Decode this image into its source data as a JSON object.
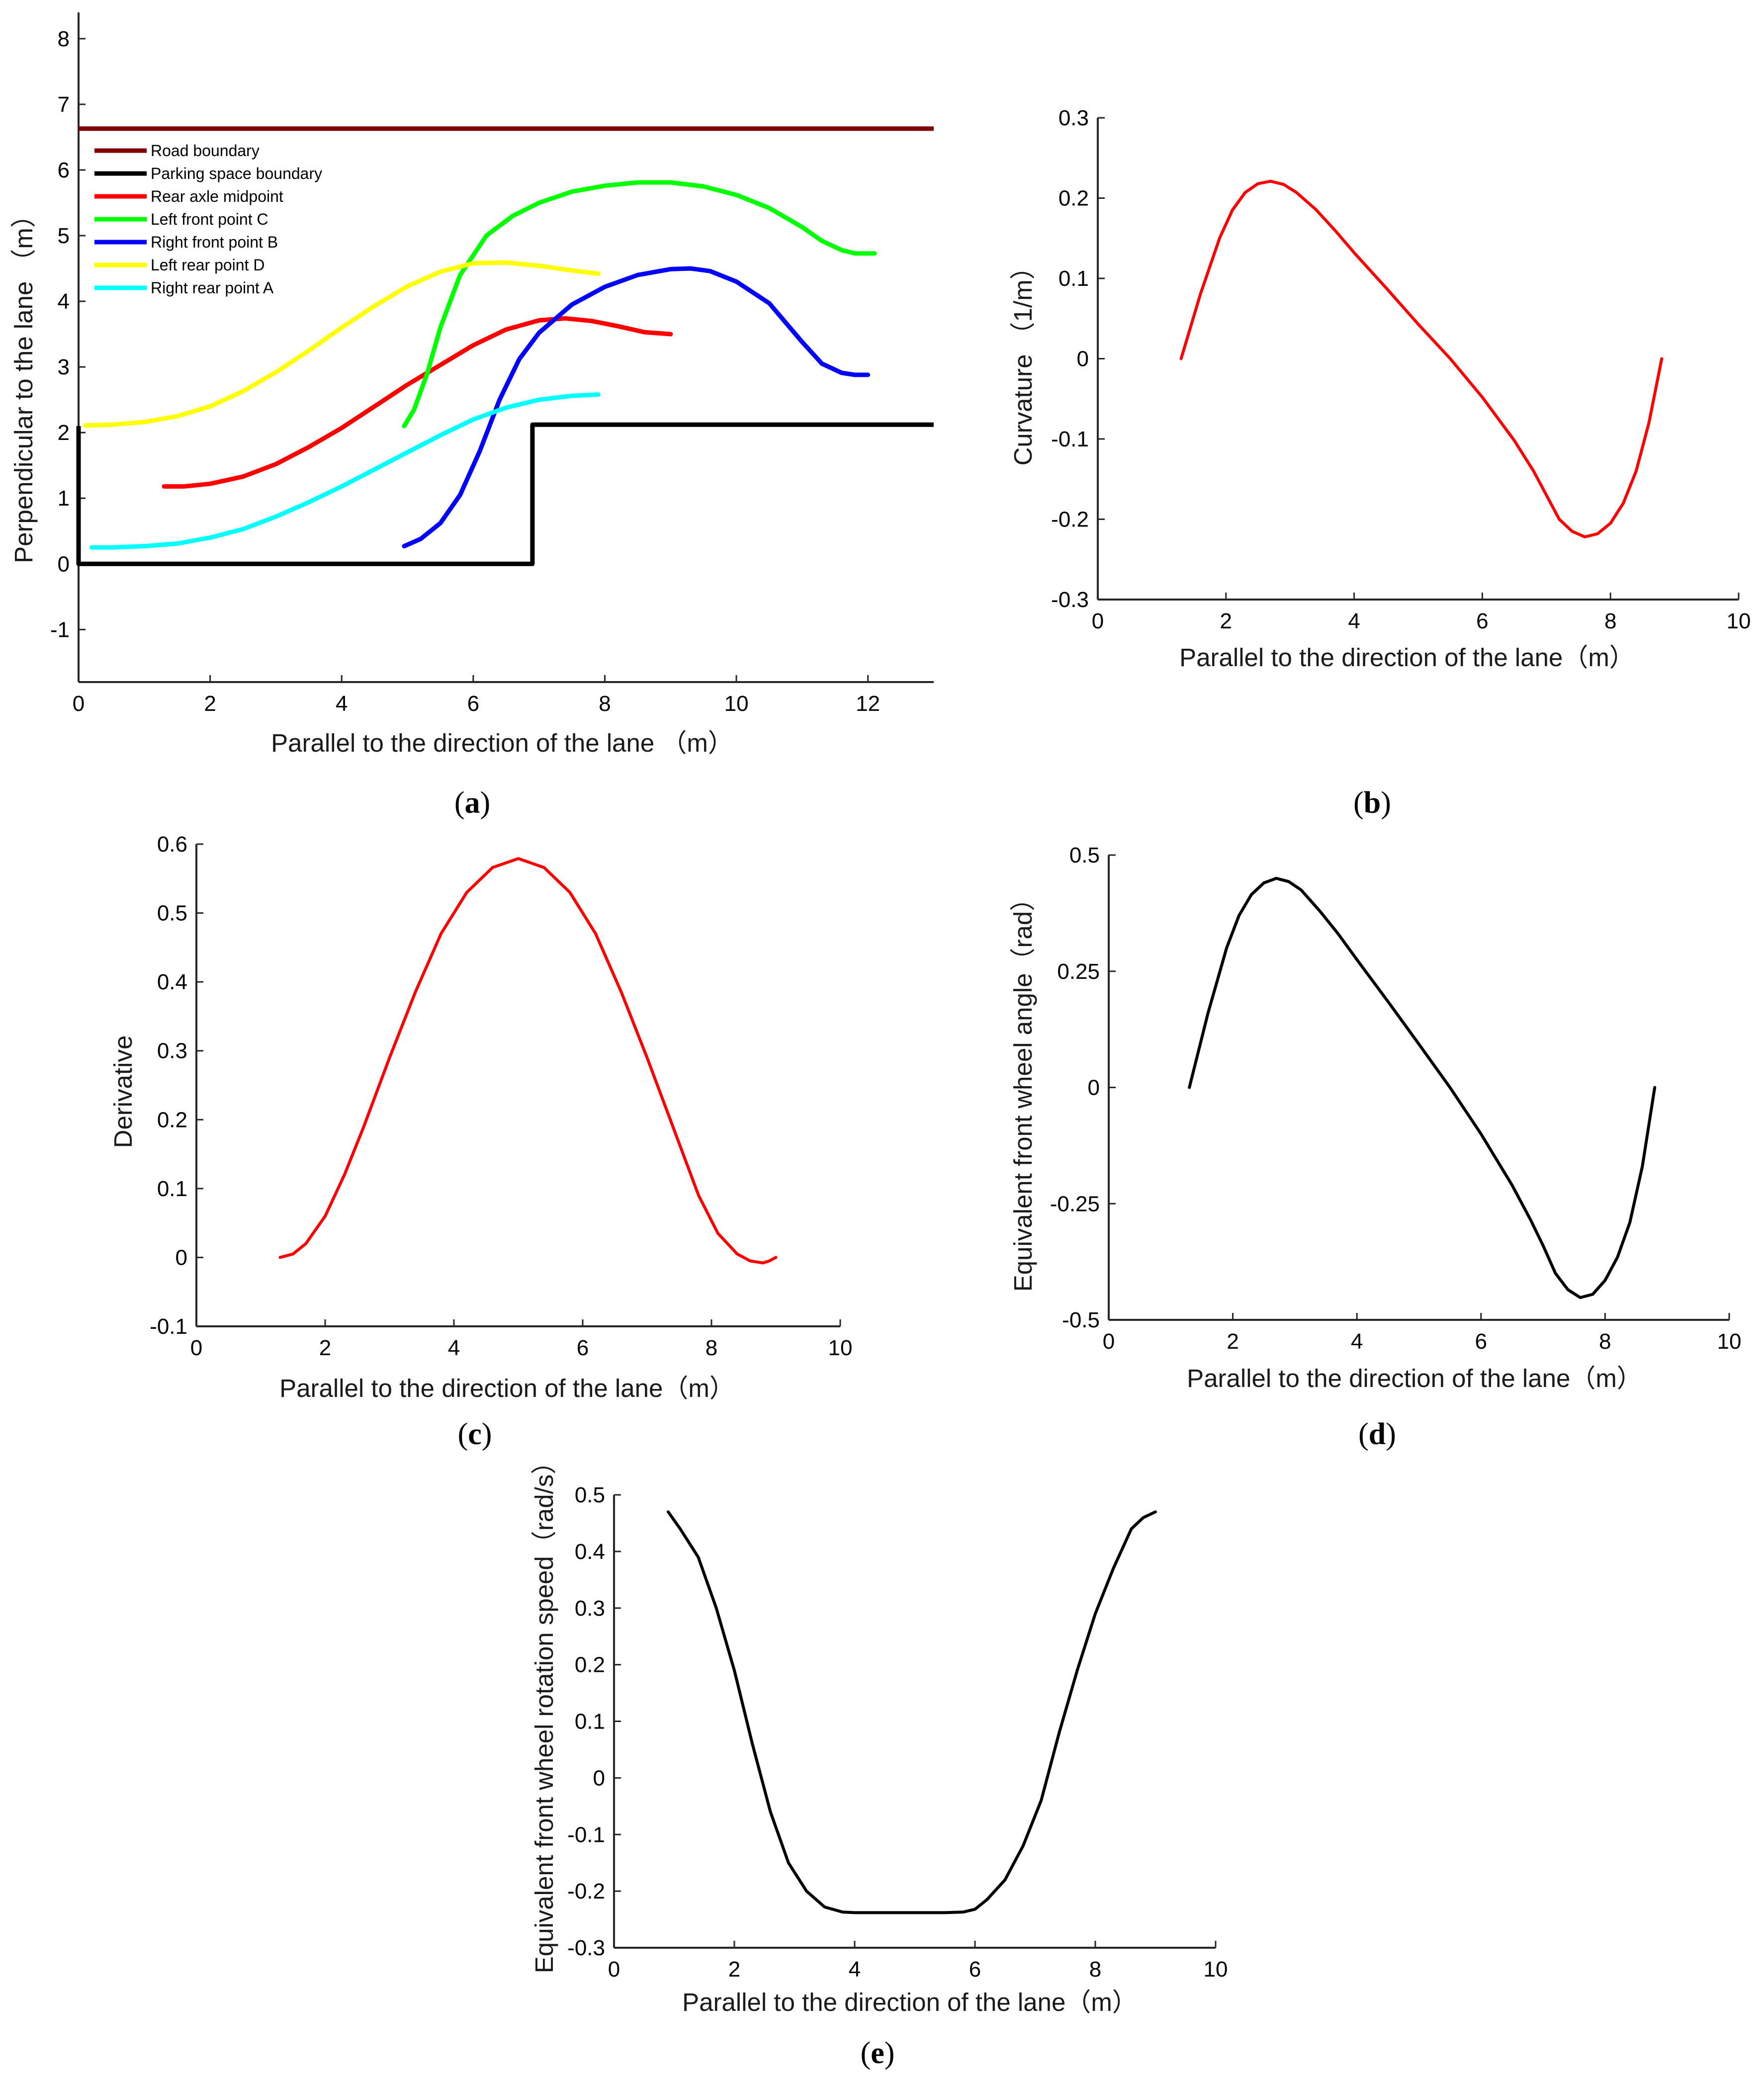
{
  "colors": {
    "road": "#800000",
    "parking": "#000000",
    "rear_axle": "#ff0000",
    "left_front": "#00ff00",
    "right_front": "#0000ff",
    "left_rear": "#ffff00",
    "right_rear": "#00ffff",
    "axis": "#262626",
    "black_line": "#000000"
  },
  "chart_data": [
    {
      "id": "a",
      "type": "line",
      "caption": "a",
      "xlabel": "Parallel to the direction of the lane （m）",
      "ylabel": "Perpendicular to the lane （m）",
      "xlim": [
        0,
        13
      ],
      "ylim": [
        -1.8,
        8.4
      ],
      "xticks": [
        0,
        2,
        4,
        6,
        8,
        10,
        12
      ],
      "xtick_labels": [
        "0",
        "2",
        "4",
        "6",
        "8",
        "10",
        "12"
      ],
      "yticks": [
        -1,
        0,
        1,
        2,
        3,
        4,
        5,
        6,
        7,
        8
      ],
      "ytick_labels": [
        "-1",
        "0",
        "1",
        "2",
        "3",
        "4",
        "5",
        "6",
        "7",
        "8"
      ],
      "legend_position": "top-left",
      "series": [
        {
          "name": "Road boundary",
          "color_key": "road",
          "x": [
            0,
            13
          ],
          "y": [
            6.63,
            6.63
          ]
        },
        {
          "name": "Parking space boundary",
          "color_key": "parking",
          "x": [
            0,
            0,
            6.9,
            6.9,
            13
          ],
          "y": [
            2.1,
            0,
            0,
            2.12,
            2.12
          ]
        },
        {
          "name": "Rear axle midpoint",
          "color_key": "rear_axle",
          "x": [
            1.3,
            1.6,
            2.0,
            2.5,
            3.0,
            3.5,
            4.0,
            4.5,
            5.0,
            5.5,
            6.0,
            6.5,
            7.0,
            7.4,
            7.8,
            8.2,
            8.6,
            9.0
          ],
          "y": [
            1.18,
            1.18,
            1.22,
            1.33,
            1.52,
            1.78,
            2.07,
            2.4,
            2.73,
            3.03,
            3.33,
            3.57,
            3.71,
            3.74,
            3.7,
            3.62,
            3.53,
            3.5
          ]
        },
        {
          "name": "Left front point C",
          "color_key": "left_front",
          "x": [
            4.95,
            5.1,
            5.3,
            5.5,
            5.8,
            6.2,
            6.6,
            7.0,
            7.5,
            8.0,
            8.5,
            9.0,
            9.5,
            10.0,
            10.5,
            11.0,
            11.3,
            11.6,
            11.8,
            12.1
          ],
          "y": [
            2.1,
            2.35,
            2.9,
            3.6,
            4.4,
            5.0,
            5.3,
            5.5,
            5.67,
            5.76,
            5.81,
            5.81,
            5.75,
            5.62,
            5.42,
            5.13,
            4.92,
            4.78,
            4.73,
            4.73
          ]
        },
        {
          "name": "Right front point B",
          "color_key": "right_front",
          "x": [
            4.95,
            5.2,
            5.5,
            5.8,
            6.1,
            6.4,
            6.7,
            7.0,
            7.5,
            8.0,
            8.5,
            9.0,
            9.3,
            9.6,
            10.0,
            10.5,
            11.0,
            11.3,
            11.6,
            11.8,
            12.0
          ],
          "y": [
            0.27,
            0.38,
            0.62,
            1.05,
            1.72,
            2.5,
            3.12,
            3.52,
            3.95,
            4.22,
            4.4,
            4.49,
            4.5,
            4.46,
            4.3,
            3.97,
            3.38,
            3.05,
            2.91,
            2.88,
            2.88
          ]
        },
        {
          "name": "Left rear point D",
          "color_key": "left_rear",
          "x": [
            0.1,
            0.5,
            1.0,
            1.5,
            2.0,
            2.5,
            3.0,
            3.5,
            4.0,
            4.5,
            5.0,
            5.5,
            6.0,
            6.5,
            7.0,
            7.5,
            7.9
          ],
          "y": [
            2.11,
            2.12,
            2.16,
            2.25,
            2.4,
            2.63,
            2.92,
            3.25,
            3.6,
            3.93,
            4.23,
            4.45,
            4.58,
            4.59,
            4.54,
            4.47,
            4.42
          ]
        },
        {
          "name": "Right rear point A",
          "color_key": "right_rear",
          "x": [
            0.2,
            0.5,
            1.0,
            1.5,
            2.0,
            2.5,
            3.0,
            3.5,
            4.0,
            4.5,
            5.0,
            5.5,
            6.0,
            6.5,
            7.0,
            7.5,
            7.9
          ],
          "y": [
            0.25,
            0.25,
            0.27,
            0.31,
            0.4,
            0.53,
            0.72,
            0.94,
            1.18,
            1.44,
            1.7,
            1.96,
            2.2,
            2.38,
            2.5,
            2.56,
            2.58
          ]
        }
      ]
    },
    {
      "id": "b",
      "type": "line",
      "caption": "b",
      "xlabel": "Parallel to the direction of the lane（m）",
      "ylabel": "Curvature （1/m）",
      "xlim": [
        0,
        10
      ],
      "ylim": [
        -0.3,
        0.3
      ],
      "xticks": [
        0,
        2,
        4,
        6,
        8,
        10
      ],
      "xtick_labels": [
        "0",
        "2",
        "4",
        "6",
        "8",
        "10"
      ],
      "yticks": [
        -0.3,
        -0.2,
        -0.1,
        0,
        0.1,
        0.2,
        0.3
      ],
      "ytick_labels": [
        "-0.3",
        "-0.2",
        "-0.1",
        "0",
        "0.1",
        "0.2",
        "0.3"
      ],
      "series": [
        {
          "name": "Curvature",
          "color_key": "rear_axle",
          "x": [
            1.3,
            1.6,
            1.9,
            2.1,
            2.3,
            2.5,
            2.7,
            2.9,
            3.1,
            3.4,
            3.7,
            4.0,
            4.5,
            5.0,
            5.5,
            6.0,
            6.5,
            6.8,
            7.0,
            7.2,
            7.4,
            7.6,
            7.8,
            8.0,
            8.2,
            8.4,
            8.6,
            8.8
          ],
          "y": [
            0.0,
            0.08,
            0.15,
            0.185,
            0.207,
            0.218,
            0.221,
            0.217,
            0.207,
            0.186,
            0.16,
            0.132,
            0.088,
            0.043,
            0.0,
            -0.048,
            -0.102,
            -0.14,
            -0.17,
            -0.2,
            -0.215,
            -0.222,
            -0.218,
            -0.205,
            -0.18,
            -0.14,
            -0.08,
            0.0
          ]
        }
      ]
    },
    {
      "id": "c",
      "type": "line",
      "caption": "c",
      "xlabel": "Parallel to the direction of the lane（m）",
      "ylabel": "Derivative",
      "xlim": [
        0,
        10
      ],
      "ylim": [
        -0.1,
        0.6
      ],
      "xticks": [
        0,
        2,
        4,
        6,
        8,
        10
      ],
      "xtick_labels": [
        "0",
        "2",
        "4",
        "6",
        "8",
        "10"
      ],
      "yticks": [
        -0.1,
        0,
        0.1,
        0.2,
        0.3,
        0.4,
        0.5,
        0.6
      ],
      "ytick_labels": [
        "-0.1",
        "0",
        "0.1",
        "0.2",
        "0.3",
        "0.4",
        "0.5",
        "0.6"
      ],
      "series": [
        {
          "name": "Derivative",
          "color_key": "rear_axle",
          "x": [
            1.3,
            1.5,
            1.7,
            2.0,
            2.3,
            2.6,
            3.0,
            3.4,
            3.8,
            4.2,
            4.6,
            5.0,
            5.4,
            5.8,
            6.2,
            6.6,
            7.0,
            7.4,
            7.8,
            8.1,
            8.4,
            8.6,
            8.8,
            8.9,
            9.0
          ],
          "y": [
            0.0,
            0.005,
            0.02,
            0.06,
            0.12,
            0.19,
            0.29,
            0.385,
            0.47,
            0.53,
            0.566,
            0.579,
            0.566,
            0.53,
            0.47,
            0.385,
            0.29,
            0.19,
            0.09,
            0.035,
            0.005,
            -0.005,
            -0.008,
            -0.005,
            0.0
          ]
        }
      ]
    },
    {
      "id": "d",
      "type": "line",
      "caption": "d",
      "xlabel": "Parallel to the direction of the lane（m）",
      "ylabel": "Equivalent front wheel angle（rad）",
      "xlim": [
        0,
        10
      ],
      "ylim": [
        -0.5,
        0.5
      ],
      "xticks": [
        0,
        2,
        4,
        6,
        8,
        10
      ],
      "xtick_labels": [
        "0",
        "2",
        "4",
        "6",
        "8",
        "10"
      ],
      "yticks": [
        -0.5,
        -0.25,
        0,
        0.25,
        0.5
      ],
      "ytick_labels": [
        "-0.5",
        "-0.25",
        "0",
        "0.25",
        "0.5"
      ],
      "series": [
        {
          "name": "Equivalent front wheel angle",
          "color_key": "black_line",
          "x": [
            1.3,
            1.6,
            1.9,
            2.1,
            2.3,
            2.5,
            2.7,
            2.9,
            3.1,
            3.4,
            3.7,
            4.0,
            4.5,
            5.0,
            5.5,
            6.0,
            6.5,
            6.8,
            7.0,
            7.2,
            7.4,
            7.6,
            7.8,
            8.0,
            8.2,
            8.4,
            8.6,
            8.8
          ],
          "y": [
            0.0,
            0.16,
            0.3,
            0.37,
            0.415,
            0.44,
            0.45,
            0.443,
            0.425,
            0.38,
            0.33,
            0.275,
            0.185,
            0.093,
            0.0,
            -0.1,
            -0.21,
            -0.285,
            -0.34,
            -0.4,
            -0.435,
            -0.452,
            -0.445,
            -0.415,
            -0.365,
            -0.29,
            -0.17,
            0.0
          ]
        }
      ]
    },
    {
      "id": "e",
      "type": "line",
      "caption": "e",
      "xlabel": "Parallel to the direction of the lane（m）",
      "ylabel": "Equivalent front wheel rotation speed（rad/s）",
      "xlim": [
        0,
        10
      ],
      "ylim": [
        -0.3,
        0.5
      ],
      "xticks": [
        0,
        2,
        4,
        6,
        8,
        10
      ],
      "xtick_labels": [
        "0",
        "2",
        "4",
        "6",
        "8",
        "10"
      ],
      "yticks": [
        -0.3,
        -0.2,
        -0.1,
        0,
        0.1,
        0.2,
        0.3,
        0.4,
        0.5
      ],
      "ytick_labels": [
        "-0.3",
        "-0.2",
        "-0.1",
        "0",
        "0.1",
        "0.2",
        "0.3",
        "0.4",
        "0.5"
      ],
      "series": [
        {
          "name": "Equivalent front wheel rotation speed",
          "color_key": "black_line",
          "x": [
            0.9,
            1.1,
            1.4,
            1.7,
            2.0,
            2.3,
            2.6,
            2.9,
            3.2,
            3.5,
            3.8,
            4.0,
            4.5,
            5.0,
            5.5,
            5.8,
            6.0,
            6.2,
            6.5,
            6.8,
            7.1,
            7.4,
            7.7,
            8.0,
            8.3,
            8.6,
            8.8,
            9.0
          ],
          "y": [
            0.47,
            0.44,
            0.39,
            0.3,
            0.19,
            0.06,
            -0.06,
            -0.15,
            -0.2,
            -0.228,
            -0.237,
            -0.238,
            -0.238,
            -0.238,
            -0.238,
            -0.237,
            -0.232,
            -0.215,
            -0.18,
            -0.12,
            -0.04,
            0.08,
            0.19,
            0.29,
            0.37,
            0.44,
            0.46,
            0.47
          ]
        }
      ]
    }
  ]
}
